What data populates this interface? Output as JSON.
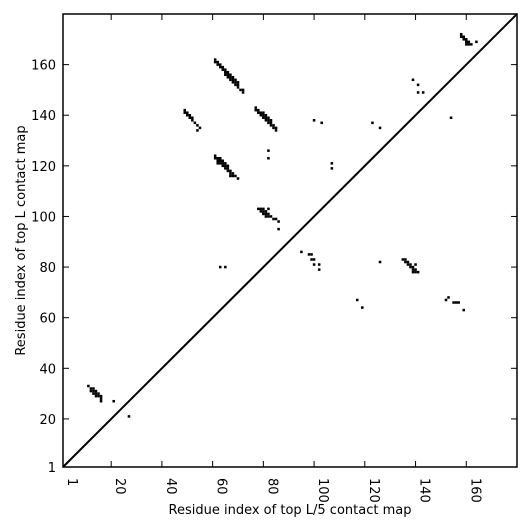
{
  "chart_data": {
    "type": "scatter",
    "title": "",
    "xlabel": "Residue index of top L/5 contact map",
    "ylabel": "Residue index of top L contact map",
    "xlim": [
      1,
      180
    ],
    "ylim": [
      1,
      180
    ],
    "xticks": [
      1,
      20,
      40,
      60,
      80,
      100,
      120,
      140,
      160
    ],
    "yticks": [
      1,
      20,
      40,
      60,
      80,
      100,
      120,
      140,
      160
    ],
    "diagonal": true,
    "grid": false,
    "marker_color": "#000000",
    "points": [
      [
        11,
        33
      ],
      [
        12,
        32
      ],
      [
        12,
        31
      ],
      [
        13,
        32
      ],
      [
        13,
        31
      ],
      [
        13,
        30
      ],
      [
        14,
        31
      ],
      [
        14,
        30
      ],
      [
        14,
        29
      ],
      [
        15,
        30
      ],
      [
        15,
        29
      ],
      [
        16,
        29
      ],
      [
        16,
        28
      ],
      [
        16,
        27
      ],
      [
        21,
        27
      ],
      [
        27,
        21
      ],
      [
        49,
        142
      ],
      [
        49,
        141
      ],
      [
        50,
        141
      ],
      [
        50,
        140
      ],
      [
        51,
        140
      ],
      [
        51,
        139
      ],
      [
        52,
        139
      ],
      [
        52,
        138
      ],
      [
        53,
        137
      ],
      [
        54,
        136
      ],
      [
        55,
        135
      ],
      [
        54,
        134
      ],
      [
        61,
        162
      ],
      [
        61,
        161
      ],
      [
        62,
        161
      ],
      [
        62,
        160
      ],
      [
        63,
        160
      ],
      [
        63,
        159
      ],
      [
        64,
        159
      ],
      [
        64,
        158
      ],
      [
        65,
        158
      ],
      [
        65,
        157
      ],
      [
        65,
        156
      ],
      [
        66,
        157
      ],
      [
        66,
        156
      ],
      [
        66,
        155
      ],
      [
        67,
        156
      ],
      [
        67,
        155
      ],
      [
        67,
        154
      ],
      [
        68,
        155
      ],
      [
        68,
        154
      ],
      [
        68,
        153
      ],
      [
        69,
        154
      ],
      [
        69,
        153
      ],
      [
        69,
        152
      ],
      [
        70,
        153
      ],
      [
        70,
        152
      ],
      [
        70,
        151
      ],
      [
        71,
        150
      ],
      [
        72,
        150
      ],
      [
        72,
        149
      ],
      [
        61,
        124
      ],
      [
        61,
        123
      ],
      [
        62,
        123
      ],
      [
        62,
        122
      ],
      [
        62,
        121
      ],
      [
        63,
        123
      ],
      [
        63,
        122
      ],
      [
        63,
        121
      ],
      [
        64,
        122
      ],
      [
        64,
        121
      ],
      [
        64,
        120
      ],
      [
        65,
        121
      ],
      [
        65,
        120
      ],
      [
        65,
        119
      ],
      [
        66,
        120
      ],
      [
        66,
        119
      ],
      [
        66,
        118
      ],
      [
        67,
        118
      ],
      [
        67,
        117
      ],
      [
        67,
        116
      ],
      [
        68,
        117
      ],
      [
        68,
        116
      ],
      [
        69,
        116
      ],
      [
        70,
        115
      ],
      [
        77,
        143
      ],
      [
        77,
        142
      ],
      [
        78,
        142
      ],
      [
        78,
        141
      ],
      [
        79,
        141
      ],
      [
        79,
        140
      ],
      [
        80,
        141
      ],
      [
        80,
        140
      ],
      [
        80,
        139
      ],
      [
        81,
        140
      ],
      [
        81,
        139
      ],
      [
        81,
        138
      ],
      [
        82,
        139
      ],
      [
        82,
        138
      ],
      [
        82,
        137
      ],
      [
        83,
        138
      ],
      [
        83,
        137
      ],
      [
        83,
        136
      ],
      [
        84,
        136
      ],
      [
        84,
        135
      ],
      [
        85,
        135
      ],
      [
        85,
        134
      ],
      [
        82,
        126
      ],
      [
        82,
        123
      ],
      [
        78,
        103
      ],
      [
        79,
        103
      ],
      [
        79,
        102
      ],
      [
        80,
        103
      ],
      [
        80,
        102
      ],
      [
        80,
        101
      ],
      [
        81,
        102
      ],
      [
        81,
        101
      ],
      [
        81,
        100
      ],
      [
        82,
        103
      ],
      [
        82,
        101
      ],
      [
        82,
        100
      ],
      [
        83,
        100
      ],
      [
        84,
        99
      ],
      [
        85,
        99
      ],
      [
        86,
        98
      ],
      [
        86,
        95
      ],
      [
        63,
        80
      ],
      [
        65,
        80
      ],
      [
        95,
        86
      ],
      [
        98,
        85
      ],
      [
        99,
        85
      ],
      [
        99,
        83
      ],
      [
        100,
        83
      ],
      [
        100,
        81
      ],
      [
        102,
        81
      ],
      [
        102,
        79
      ],
      [
        100,
        138
      ],
      [
        103,
        137
      ],
      [
        107,
        121
      ],
      [
        107,
        119
      ],
      [
        117,
        67
      ],
      [
        119,
        64
      ],
      [
        123,
        137
      ],
      [
        126,
        135
      ],
      [
        126,
        82
      ],
      [
        135,
        83
      ],
      [
        136,
        83
      ],
      [
        136,
        82
      ],
      [
        137,
        82
      ],
      [
        137,
        81
      ],
      [
        138,
        81
      ],
      [
        138,
        80
      ],
      [
        139,
        80
      ],
      [
        139,
        79
      ],
      [
        139,
        78
      ],
      [
        140,
        81
      ],
      [
        140,
        79
      ],
      [
        140,
        78
      ],
      [
        141,
        78
      ],
      [
        139,
        154
      ],
      [
        141,
        152
      ],
      [
        141,
        149
      ],
      [
        143,
        149
      ],
      [
        152,
        67
      ],
      [
        153,
        68
      ],
      [
        155,
        66
      ],
      [
        156,
        66
      ],
      [
        157,
        66
      ],
      [
        159,
        63
      ],
      [
        154,
        139
      ],
      [
        158,
        172
      ],
      [
        158,
        171
      ],
      [
        159,
        171
      ],
      [
        159,
        170
      ],
      [
        160,
        170
      ],
      [
        160,
        169
      ],
      [
        160,
        168
      ],
      [
        161,
        169
      ],
      [
        161,
        168
      ],
      [
        162,
        168
      ],
      [
        164,
        169
      ]
    ]
  }
}
